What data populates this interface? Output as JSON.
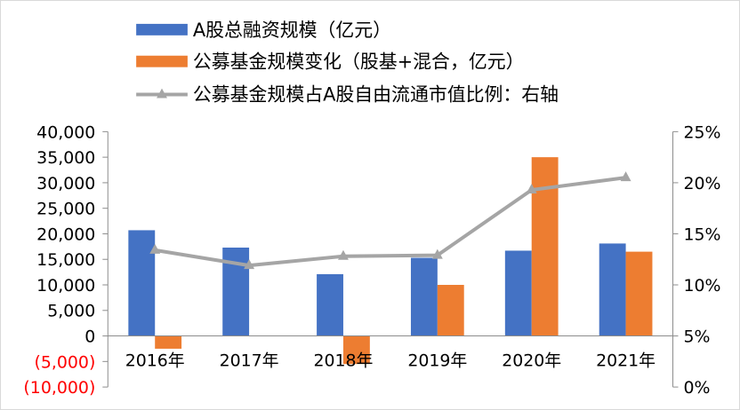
{
  "chart_data": {
    "type": "bar",
    "categories": [
      "2016年",
      "2017年",
      "2018年",
      "2019年",
      "2020年",
      "2021年"
    ],
    "series": [
      {
        "name": "A股总融资规模（亿元）",
        "kind": "bar",
        "axis": "left",
        "color": "#4472C4",
        "values": [
          20700,
          17300,
          12100,
          15300,
          16700,
          18100
        ]
      },
      {
        "name": "公募基金规模变化（股基+混合，亿元）",
        "kind": "bar",
        "axis": "left",
        "color": "#ED7D31",
        "values": [
          -2500,
          0,
          -5500,
          10000,
          35000,
          16500
        ]
      },
      {
        "name": "公募基金规模占A股自由流通市值比例：右轴",
        "kind": "line",
        "axis": "right",
        "color": "#A5A5A5",
        "values": [
          13.4,
          11.9,
          12.8,
          12.9,
          19.3,
          20.5
        ]
      }
    ],
    "left_axis": {
      "min": -10000,
      "max": 40000,
      "ticks": [
        40000,
        35000,
        30000,
        25000,
        20000,
        15000,
        10000,
        5000,
        0,
        -5000,
        -10000
      ],
      "tick_labels": [
        "40,000",
        "35,000",
        "30,000",
        "25,000",
        "20,000",
        "15,000",
        "10,000",
        "5,000",
        "0",
        "(5,000)",
        "(10,000)"
      ],
      "negative_color": "#FF0000"
    },
    "right_axis": {
      "min": 0,
      "max": 25,
      "ticks": [
        25,
        20,
        15,
        10,
        5,
        0
      ],
      "tick_labels": [
        "25%",
        "20%",
        "15%",
        "10%",
        "5%",
        "0%"
      ]
    },
    "legend_position": "top-left",
    "grid": false
  }
}
